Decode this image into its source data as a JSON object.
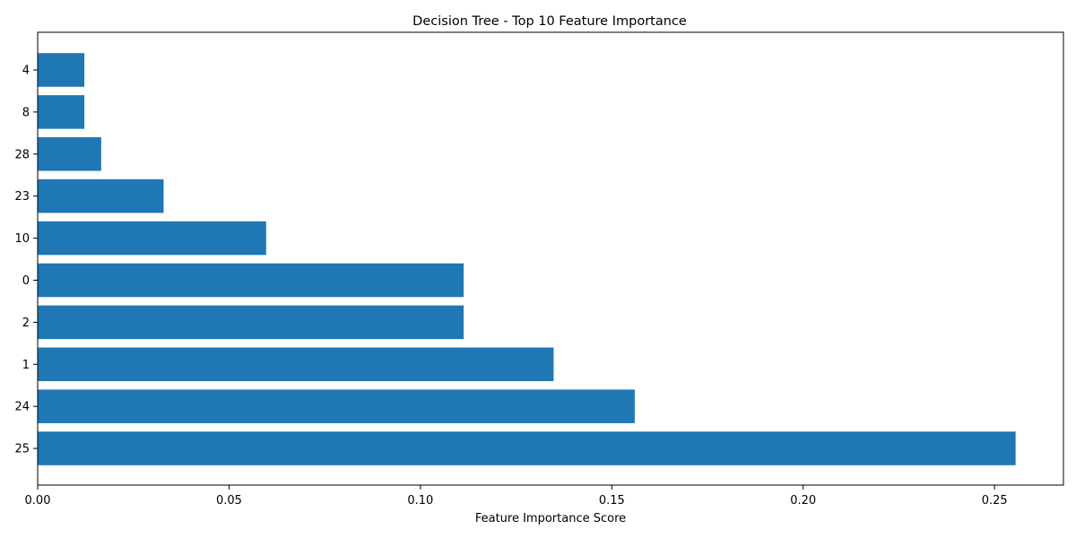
{
  "chart_data": {
    "type": "bar",
    "orientation": "horizontal",
    "title": "Decision Tree - Top 10 Feature Importance",
    "xlabel": "Feature Importance Score",
    "ylabel": "",
    "categories": [
      "4",
      "8",
      "28",
      "23",
      "10",
      "0",
      "2",
      "1",
      "24",
      "25"
    ],
    "values": [
      0.0122,
      0.0122,
      0.0166,
      0.0329,
      0.0597,
      0.1113,
      0.1113,
      0.1348,
      0.156,
      0.2555
    ],
    "xlim": [
      0,
      0.268
    ],
    "xticks": [
      "0.00",
      "0.05",
      "0.10",
      "0.15",
      "0.20",
      "0.25"
    ],
    "grid": false,
    "bar_color": "#1f77b4"
  }
}
